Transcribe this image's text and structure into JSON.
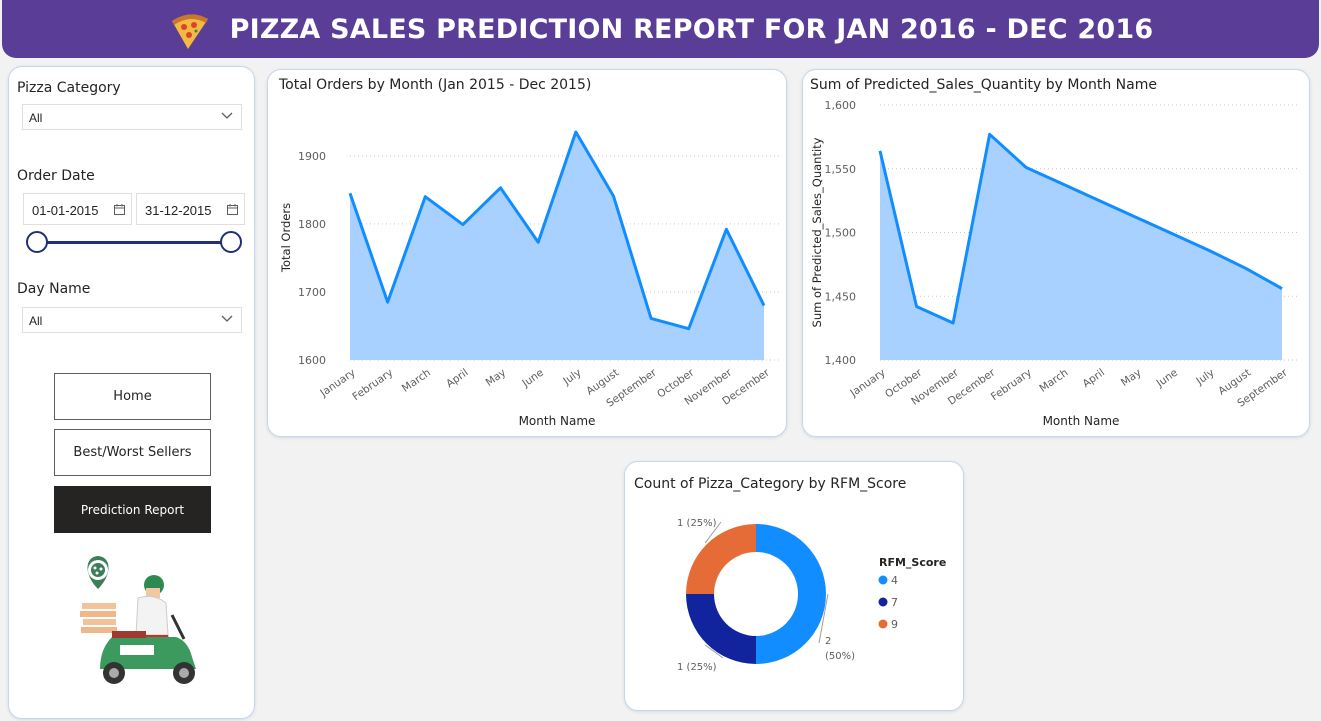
{
  "header": {
    "title": "PIZZA SALES PREDICTION REPORT FOR JAN 2016 - DEC 2016",
    "icon": "pizza-slice-icon",
    "bg_color": "#5a3d96"
  },
  "sidebar": {
    "pizza_category": {
      "label": "Pizza Category",
      "value": "All"
    },
    "order_date": {
      "label": "Order Date",
      "start": "01-01-2015",
      "end": "31-12-2015"
    },
    "day_name": {
      "label": "Day Name",
      "value": "All"
    },
    "nav": {
      "home": "Home",
      "best_worst": "Best/Worst Sellers",
      "prediction": "Prediction Report"
    },
    "illustration": "pizza-delivery-scooter-illustration"
  },
  "charts": {
    "orders": {
      "title": "Total Orders by Month (Jan 2015 - Dec 2015)"
    },
    "predicted": {
      "title": "Sum of Predicted_Sales_Quantity by Month Name"
    },
    "rfm": {
      "title": "Count of Pizza_Category by RFM_Score"
    }
  },
  "chart_data": [
    {
      "type": "area",
      "title": "Total Orders by Month (Jan 2015 - Dec 2015)",
      "xlabel": "Month Name",
      "ylabel": "Total Orders",
      "categories": [
        "January",
        "February",
        "March",
        "April",
        "May",
        "June",
        "July",
        "August",
        "September",
        "October",
        "November",
        "December"
      ],
      "values": [
        1845,
        1685,
        1840,
        1799,
        1853,
        1773,
        1935,
        1841,
        1661,
        1646,
        1792,
        1680
      ],
      "ylim": [
        1600,
        1960
      ],
      "yticks": [
        "1600",
        "1700",
        "1800",
        "1900"
      ],
      "color": "#118dff",
      "fill": "#a8d1ff",
      "grid": true
    },
    {
      "type": "area",
      "title": "Sum of Predicted_Sales_Quantity by Month Name",
      "xlabel": "Month Name",
      "ylabel": "Sum of Predicted_Sales_Quantity",
      "categories": [
        "January",
        "October",
        "November",
        "December",
        "February",
        "March",
        "April",
        "May",
        "June",
        "July",
        "August",
        "September"
      ],
      "values": [
        1564,
        1442,
        1429,
        1577,
        1551,
        1538,
        1525,
        1512,
        1499,
        1486,
        1472,
        1456
      ],
      "ylim": [
        1400,
        1600
      ],
      "yticks": [
        "1,400",
        "1,450",
        "1,500",
        "1,550",
        "1,600"
      ],
      "color": "#118dff",
      "fill": "#a8d1ff",
      "grid": true
    },
    {
      "type": "pie",
      "title": "Count of Pizza_Category by RFM_Score",
      "legend_title": "RFM_Score",
      "legend_position": "right",
      "slices": [
        {
          "label": "4",
          "value": 2,
          "text": "2",
          "text2": "(50%)",
          "color": "#118dff"
        },
        {
          "label": "7",
          "value": 1,
          "text": "1 (25%)",
          "text2": "",
          "color": "#12239e"
        },
        {
          "label": "9",
          "value": 1,
          "text": "1 (25%)",
          "text2": "",
          "color": "#e66c37"
        }
      ]
    }
  ]
}
